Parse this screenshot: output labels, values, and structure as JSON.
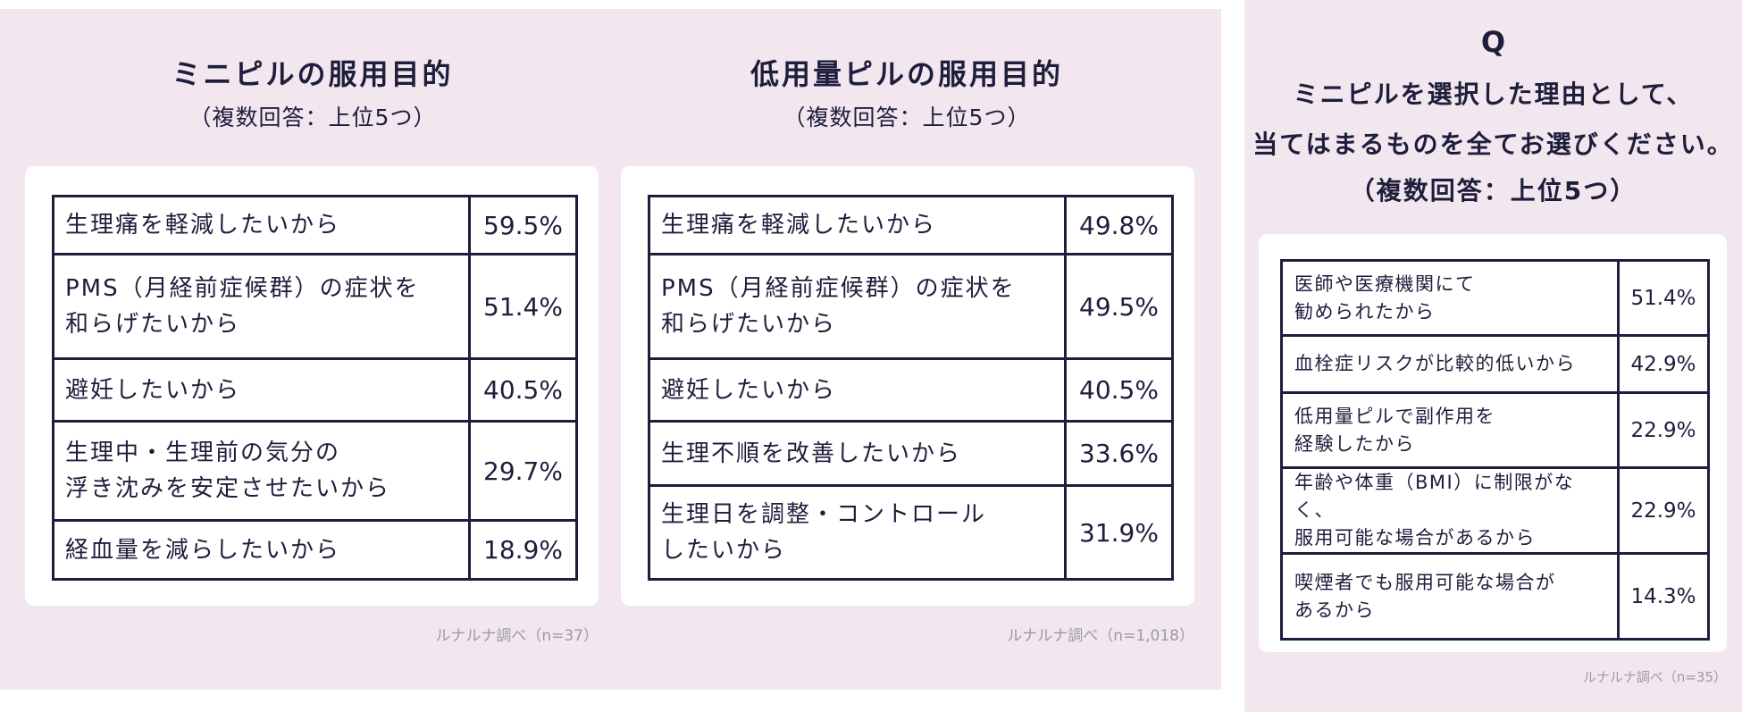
{
  "left_chart": {
    "title": "ミニピルの服用目的",
    "subtitle": "（複数回答：上位5つ）",
    "rows": [
      {
        "label_lines": [
          "生理痛を軽減したいから"
        ],
        "value": "59.5%"
      },
      {
        "label_lines": [
          "PMS（月経前症候群）の症状を",
          "和らげたいから"
        ],
        "value": "51.4%"
      },
      {
        "label_lines": [
          "避妊したいから"
        ],
        "value": "40.5%"
      },
      {
        "label_lines": [
          "生理中・生理前の気分の",
          "浮き沈みを安定させたいから"
        ],
        "value": "29.7%"
      },
      {
        "label_lines": [
          "経血量を減らしたいから"
        ],
        "value": "18.9%"
      }
    ],
    "source": "ルナルナ調べ（n=37）"
  },
  "middle_chart": {
    "title": "低用量ピルの服用目的",
    "subtitle": "（複数回答：上位5つ）",
    "rows": [
      {
        "label_lines": [
          "生理痛を軽減したいから"
        ],
        "value": "49.8%"
      },
      {
        "label_lines": [
          "PMS（月経前症候群）の症状を",
          "和らげたいから"
        ],
        "value": "49.5%"
      },
      {
        "label_lines": [
          "避妊したいから"
        ],
        "value": "40.5%"
      },
      {
        "label_lines": [
          "生理不順を改善したいから"
        ],
        "value": "33.6%"
      },
      {
        "label_lines": [
          "生理日を調整・コントロール",
          "したいから"
        ],
        "value": "31.9%"
      }
    ],
    "source": "ルナルナ調べ（n=1,018）"
  },
  "right_chart": {
    "q_letter": "Q",
    "question_lines": [
      "ミニピルを選択した理由として、",
      "当てはまるものを全てお選びください。",
      "（複数回答：上位5つ）"
    ],
    "rows": [
      {
        "label_lines": [
          "医師や医療機関にて",
          "勧められたから"
        ],
        "value": "51.4%"
      },
      {
        "label_lines": [
          "血栓症リスクが比較的低いから"
        ],
        "value": "42.9%"
      },
      {
        "label_lines": [
          "低用量ピルで副作用を",
          "経験したから"
        ],
        "value": "22.9%"
      },
      {
        "label_lines": [
          "年齢や体重（BMI）に制限がなく、",
          "服用可能な場合があるから"
        ],
        "value": "22.9%"
      },
      {
        "label_lines": [
          "喫煙者でも服用可能な場合が",
          "あるから"
        ],
        "value": "14.3%"
      }
    ],
    "source": "ルナルナ調べ（n=35）"
  }
}
